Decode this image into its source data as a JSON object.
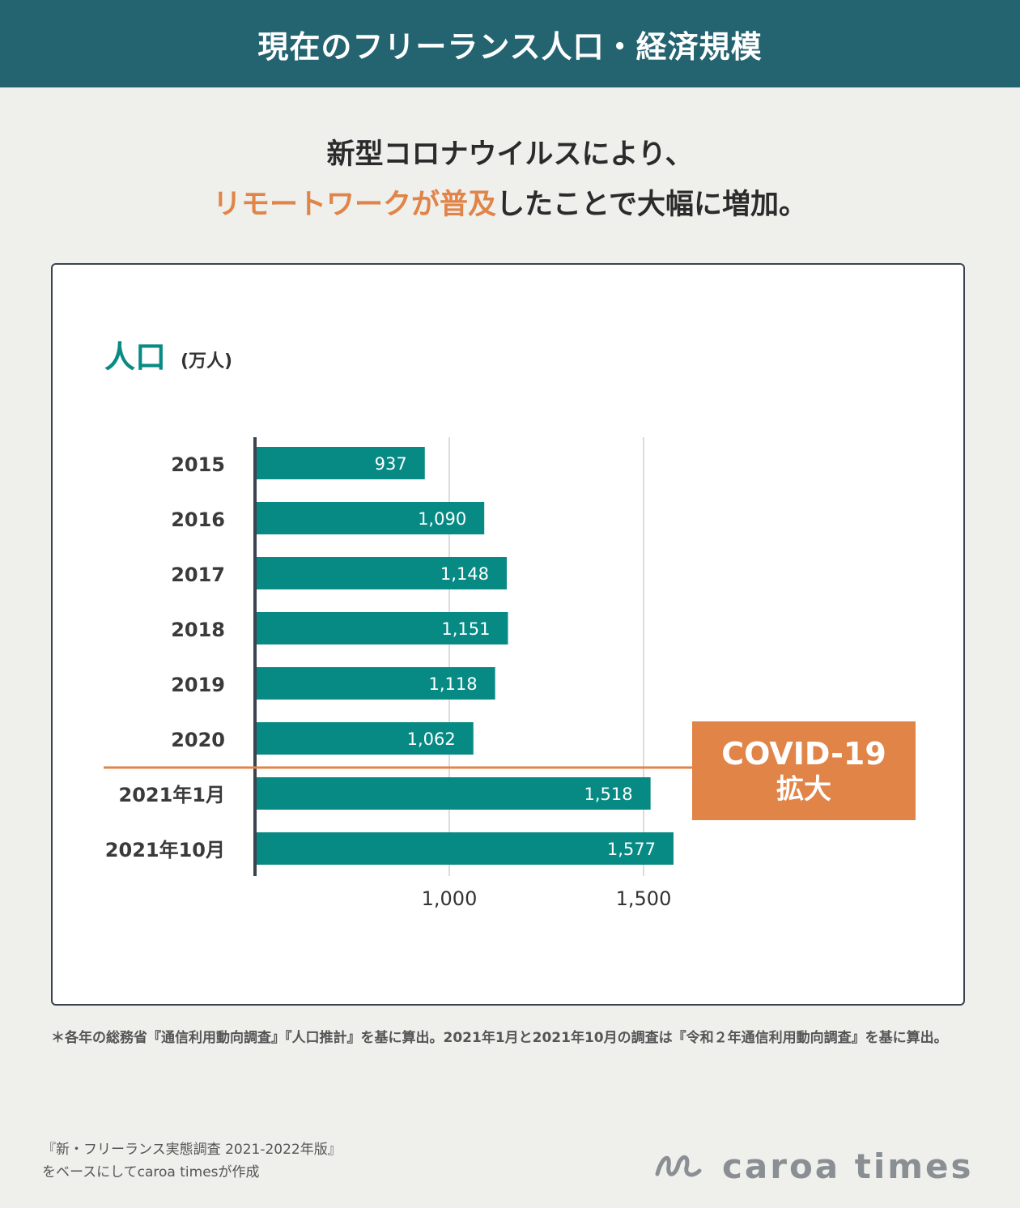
{
  "header": {
    "title": "現在のフリーランス人口・経済規模"
  },
  "subtitle": {
    "line1": "新型コロナウイルスにより、",
    "line2_highlight": "リモートワークが普及",
    "line2_rest": "したことで大幅に増加。"
  },
  "chart_data": {
    "type": "bar",
    "orientation": "horizontal",
    "title": "人口",
    "unit": "(万人)",
    "categories": [
      "2015",
      "2016",
      "2017",
      "2018",
      "2019",
      "2020",
      "2021年1月",
      "2021年10月"
    ],
    "values": [
      937,
      1090,
      1148,
      1151,
      1118,
      1062,
      1518,
      1577
    ],
    "value_labels": [
      "937",
      "1,090",
      "1,148",
      "1,151",
      "1,118",
      "1,062",
      "1,518",
      "1,577"
    ],
    "xticks": [
      1000,
      1500
    ],
    "xtick_labels": [
      "1,000",
      "1,500"
    ],
    "xlim": [
      500,
      1500
    ],
    "grid": true,
    "bar_color": "#078a84",
    "annotation": {
      "line1": "COVID-19",
      "line2": "拡大",
      "color": "#e08448",
      "between": [
        "2020",
        "2021年1月"
      ]
    }
  },
  "footnote": "＊各年の総務省『通信利用動向調査』『人口推計』を基に算出。2021年1月と2021年10月の調査は『令和２年通信利用動向調査』を基に算出。",
  "credit": {
    "line1": "『新・フリーランス実態調査 2021-2022年版』",
    "line2": "をベースにしてcaroa timesが作成"
  },
  "logo": {
    "text": "caroa times",
    "icon": "caroa-mark-icon"
  }
}
